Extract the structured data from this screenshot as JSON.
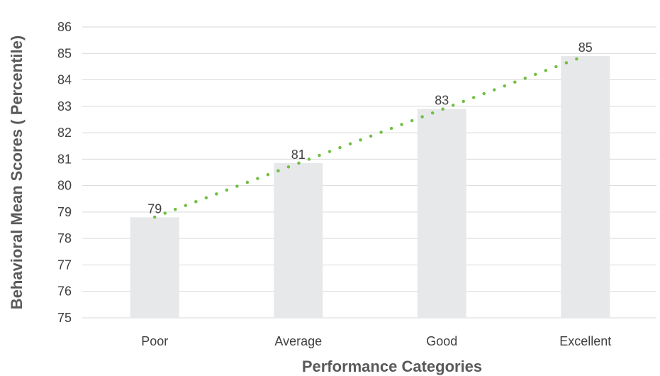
{
  "chart_data": {
    "type": "bar",
    "title": "",
    "xlabel": "Performance Categories",
    "ylabel": "Behavioral Mean Scores ( Percentile)",
    "categories": [
      "Poor",
      "Average",
      "Good",
      "Excellent"
    ],
    "values": [
      78.8,
      80.85,
      82.9,
      84.9
    ],
    "data_labels": [
      "79",
      "81",
      "83",
      "85"
    ],
    "ylim": [
      75,
      86
    ],
    "yticks": [
      75,
      76,
      77,
      78,
      79,
      80,
      81,
      82,
      83,
      84,
      85,
      86
    ],
    "grid": true,
    "legend": "none",
    "trendline": {
      "type": "linear",
      "style": "dotted"
    },
    "colors": {
      "bar": "#e7e8e9",
      "trendline": "#70bf44",
      "grid": "#d9d9d9",
      "text": "#404040",
      "axis_title": "#595959"
    }
  }
}
